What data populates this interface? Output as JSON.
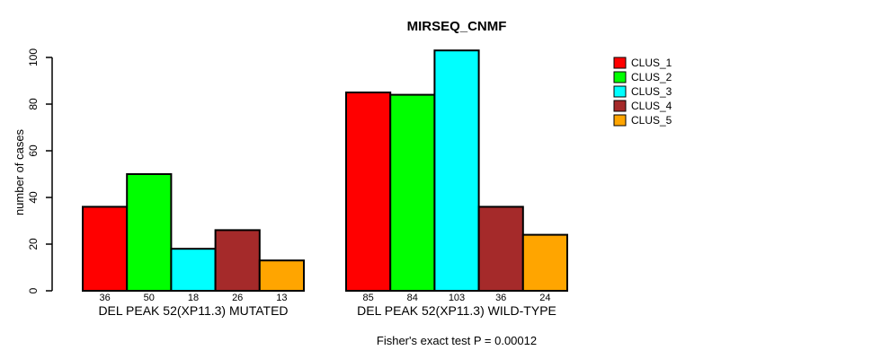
{
  "chart_data": {
    "type": "bar",
    "title": "MIRSEQ_CNMF",
    "ylabel": "number of cases",
    "xlabel": "",
    "yticks": [
      0,
      20,
      40,
      60,
      80,
      100
    ],
    "ylim": [
      0,
      103
    ],
    "grid": false,
    "legend_position": "right",
    "series": [
      {
        "name": "CLUS_1",
        "color": "#FF0000"
      },
      {
        "name": "CLUS_2",
        "color": "#00FF00"
      },
      {
        "name": "CLUS_3",
        "color": "#00FFFF"
      },
      {
        "name": "CLUS_4",
        "color": "#A52A2A"
      },
      {
        "name": "CLUS_5",
        "color": "#FFA500"
      }
    ],
    "groups": [
      {
        "label": "DEL PEAK 52(XP11.3) MUTATED",
        "values": [
          36,
          50,
          18,
          26,
          13
        ]
      },
      {
        "label": "DEL PEAK 52(XP11.3) WILD-TYPE",
        "values": [
          85,
          84,
          103,
          36,
          24
        ]
      }
    ],
    "footnote": "Fisher's exact test P = 0.00012",
    "colors": {
      "axis": "#000000",
      "bar_border": "#000000",
      "background": "#FFFFFF"
    }
  }
}
